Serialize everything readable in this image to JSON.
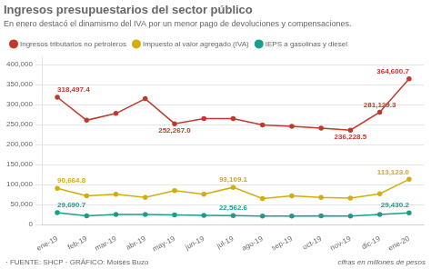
{
  "chart_data": {
    "type": "line",
    "title": "Ingresos presupuestarios del sector público",
    "subtitle": "En enero destacó el dinamismo del IVA por un menor pago de devoluciones y compensaciones.",
    "note": "cifras en millones de pesos",
    "footnote": "· FUENTE: SHCP · GRÁFICO: Moisés Buzo",
    "categories": [
      "ene-19",
      "feb-19",
      "mar-19",
      "abr-19",
      "may-19",
      "jun-19",
      "jul-19",
      "ago-19",
      "sep-19",
      "oct-19",
      "nov-19",
      "dic-19",
      "ene-20"
    ],
    "series": [
      {
        "name": "Ingresos tributarios no petroleros",
        "color": "#c0392b",
        "values": [
          318497.4,
          261000,
          278000,
          315000,
          252267.0,
          265000,
          265000,
          249000,
          246000,
          241000,
          236228.5,
          281129.3,
          364600.7
        ]
      },
      {
        "name": "Impuesto al valor agregado (IVA)",
        "color": "#d4ac0d",
        "values": [
          90664.8,
          72000,
          76000,
          68000,
          85000,
          76000,
          93109.1,
          65000,
          72000,
          68000,
          66000,
          77000,
          113123.0
        ]
      },
      {
        "name": "IEPS a gasolinas y diesel",
        "color": "#1a9e8a",
        "values": [
          29690.7,
          22000,
          25000,
          25000,
          24000,
          23000,
          22562.6,
          21000,
          21000,
          22000,
          21000,
          25000,
          29430.2
        ]
      }
    ],
    "annotations": [
      {
        "series": "Ingresos tributarios no petroleros",
        "x": "ene-19",
        "y": 318497.4,
        "text": "318,497.4"
      },
      {
        "series": "Ingresos tributarios no petroleros",
        "x": "may-19",
        "y": 252267.0,
        "text": "252,267.0"
      },
      {
        "series": "Ingresos tributarios no petroleros",
        "x": "nov-19",
        "y": 236228.5,
        "text": "236,228.5"
      },
      {
        "series": "Ingresos tributarios no petroleros",
        "x": "dic-19",
        "y": 281129.3,
        "text": "281,129.3"
      },
      {
        "series": "Ingresos tributarios no petroleros",
        "x": "ene-20",
        "y": 364600.7,
        "text": "364,600.7"
      },
      {
        "series": "Impuesto al valor agregado (IVA)",
        "x": "ene-19",
        "y": 90664.8,
        "text": "90,664.8"
      },
      {
        "series": "Impuesto al valor agregado (IVA)",
        "x": "jul-19",
        "y": 93109.1,
        "text": "93,109.1"
      },
      {
        "series": "Impuesto al valor agregado (IVA)",
        "x": "ene-20",
        "y": 113123.0,
        "text": "113,123.0"
      },
      {
        "series": "IEPS a gasolinas y diesel",
        "x": "ene-19",
        "y": 29690.7,
        "text": "29,690.7"
      },
      {
        "series": "IEPS a gasolinas y diesel",
        "x": "jul-19",
        "y": 22562.6,
        "text": "22,562.6"
      },
      {
        "series": "IEPS a gasolinas y diesel",
        "x": "ene-20",
        "y": 29430.2,
        "text": "29,430.2"
      }
    ],
    "ylim": [
      0,
      420000
    ],
    "yticks": [
      0,
      {
        "value": 50000,
        "label": "50,000"
      },
      {
        "value": 100000,
        "label": "100,000"
      },
      {
        "value": 150000,
        "label": "150,000"
      },
      {
        "value": 200000,
        "label": "200,000"
      },
      {
        "value": 250000,
        "label": "250,000"
      },
      {
        "value": 300000,
        "label": "300,000"
      },
      {
        "value": 350000,
        "label": "350,000"
      },
      {
        "value": 400000,
        "label": "400,000"
      }
    ],
    "grid": true,
    "legend": "top",
    "marker": "circle"
  }
}
